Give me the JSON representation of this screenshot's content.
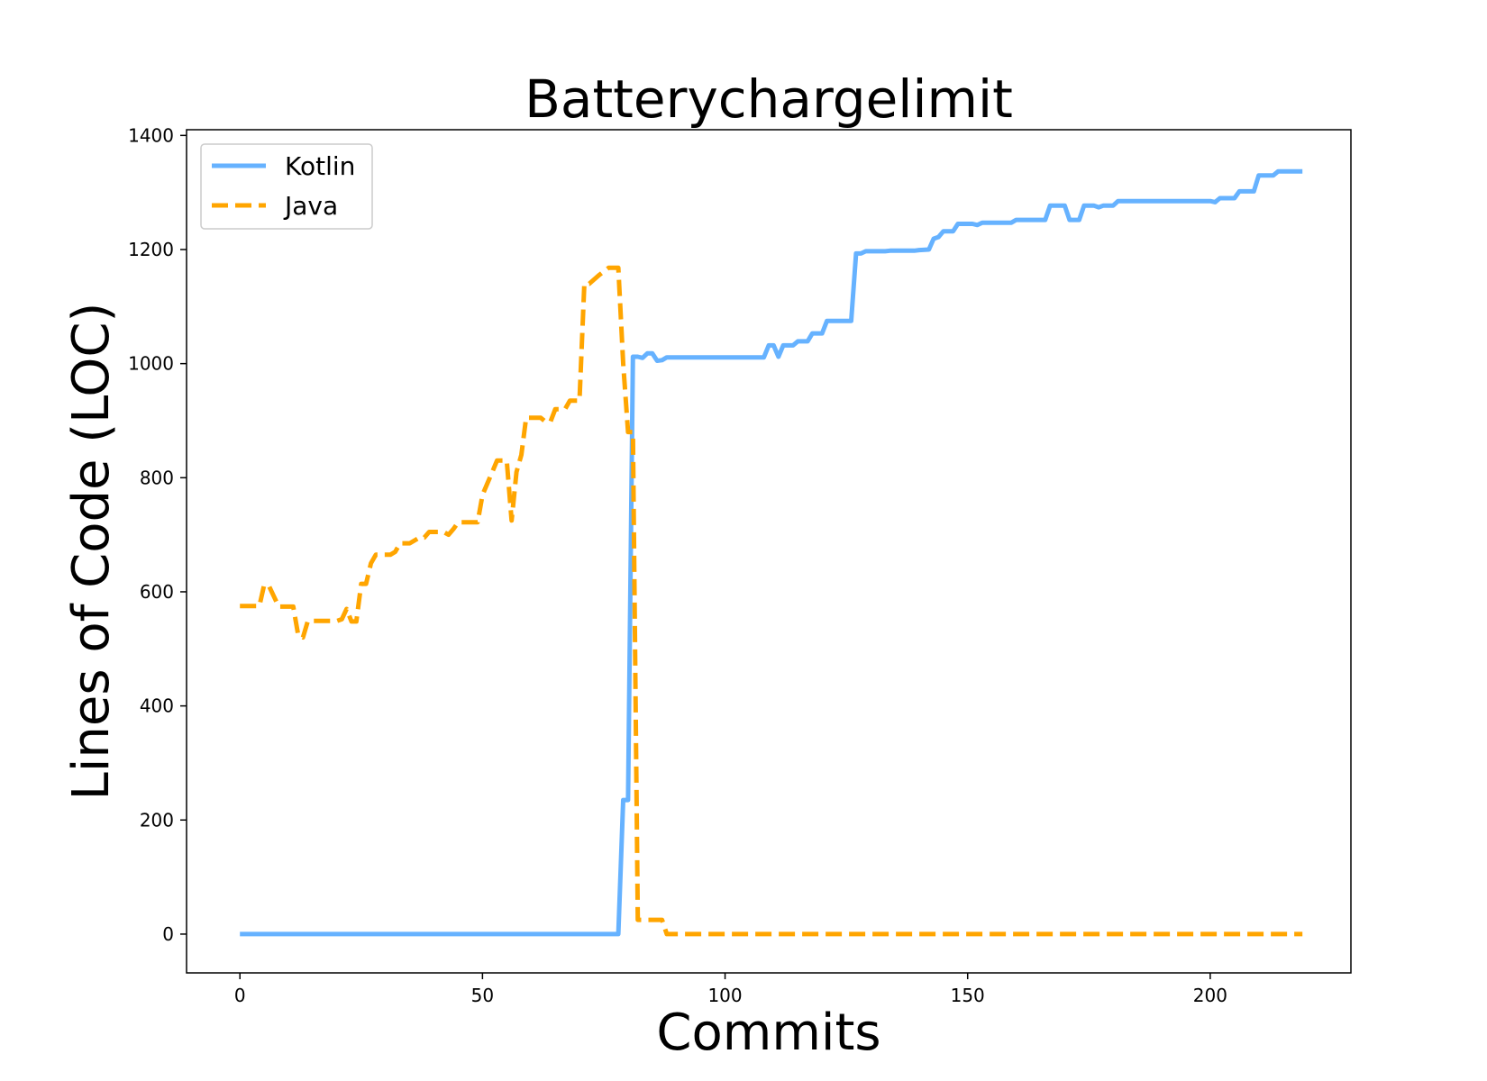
{
  "chart_data": {
    "type": "line",
    "title": "Batterychargelimit",
    "xlabel": "Commits",
    "ylabel": "Lines of Code (LOC)",
    "xlim": [
      -11,
      229
    ],
    "ylim": [
      -68,
      1410
    ],
    "xticks": [
      0,
      50,
      100,
      150,
      200
    ],
    "yticks": [
      0,
      200,
      400,
      600,
      800,
      1000,
      1200,
      1400
    ],
    "grid": false,
    "legend_position": "top-left",
    "series": [
      {
        "name": "Kotlin",
        "color": "#66b2ff",
        "dash": "solid",
        "points": [
          [
            0,
            0
          ],
          [
            78,
            0
          ],
          [
            79,
            235
          ],
          [
            80,
            235
          ],
          [
            81,
            1012
          ],
          [
            82,
            1012
          ],
          [
            83,
            1010
          ],
          [
            84,
            1018
          ],
          [
            85,
            1018
          ],
          [
            86,
            1005
          ],
          [
            87,
            1006
          ],
          [
            88,
            1011
          ],
          [
            108,
            1011
          ],
          [
            109,
            1032
          ],
          [
            110,
            1032
          ],
          [
            111,
            1012
          ],
          [
            112,
            1032
          ],
          [
            114,
            1032
          ],
          [
            115,
            1039
          ],
          [
            117,
            1039
          ],
          [
            118,
            1053
          ],
          [
            120,
            1053
          ],
          [
            121,
            1075
          ],
          [
            126,
            1075
          ],
          [
            127,
            1193
          ],
          [
            128,
            1193
          ],
          [
            129,
            1197
          ],
          [
            133,
            1197
          ],
          [
            134,
            1198
          ],
          [
            139,
            1198
          ],
          [
            140,
            1199
          ],
          [
            142,
            1200
          ],
          [
            143,
            1219
          ],
          [
            144,
            1222
          ],
          [
            145,
            1232
          ],
          [
            147,
            1232
          ],
          [
            148,
            1245
          ],
          [
            151,
            1245
          ],
          [
            152,
            1243
          ],
          [
            153,
            1247
          ],
          [
            159,
            1247
          ],
          [
            160,
            1252
          ],
          [
            166,
            1252
          ],
          [
            167,
            1277
          ],
          [
            170,
            1277
          ],
          [
            171,
            1252
          ],
          [
            173,
            1252
          ],
          [
            174,
            1277
          ],
          [
            176,
            1277
          ],
          [
            177,
            1274
          ],
          [
            178,
            1277
          ],
          [
            180,
            1277
          ],
          [
            181,
            1285
          ],
          [
            200,
            1285
          ],
          [
            201,
            1283
          ],
          [
            202,
            1290
          ],
          [
            205,
            1290
          ],
          [
            206,
            1302
          ],
          [
            209,
            1302
          ],
          [
            210,
            1330
          ],
          [
            213,
            1330
          ],
          [
            214,
            1337
          ],
          [
            219,
            1337
          ]
        ]
      },
      {
        "name": "Java",
        "color": "#ffa500",
        "dash": "dashed",
        "points": [
          [
            0,
            575
          ],
          [
            4,
            575
          ],
          [
            5,
            612
          ],
          [
            6,
            610
          ],
          [
            8,
            574
          ],
          [
            11,
            574
          ],
          [
            12,
            525
          ],
          [
            13,
            520
          ],
          [
            14,
            549
          ],
          [
            15,
            549
          ],
          [
            16,
            549
          ],
          [
            20,
            549
          ],
          [
            21,
            552
          ],
          [
            22,
            570
          ],
          [
            23,
            548
          ],
          [
            24,
            548
          ],
          [
            25,
            614
          ],
          [
            26,
            614
          ],
          [
            27,
            650
          ],
          [
            28,
            665
          ],
          [
            31,
            665
          ],
          [
            32,
            670
          ],
          [
            33,
            685
          ],
          [
            35,
            685
          ],
          [
            37,
            695
          ],
          [
            38,
            695
          ],
          [
            39,
            705
          ],
          [
            42,
            705
          ],
          [
            43,
            700
          ],
          [
            44,
            710
          ],
          [
            45,
            722
          ],
          [
            49,
            722
          ],
          [
            50,
            770
          ],
          [
            51,
            790
          ],
          [
            52,
            810
          ],
          [
            53,
            830
          ],
          [
            55,
            830
          ],
          [
            56,
            725
          ],
          [
            57,
            810
          ],
          [
            58,
            840
          ],
          [
            59,
            905
          ],
          [
            62,
            905
          ],
          [
            63,
            898
          ],
          [
            64,
            898
          ],
          [
            65,
            920
          ],
          [
            67,
            920
          ],
          [
            68,
            935
          ],
          [
            70,
            935
          ],
          [
            71,
            1140
          ],
          [
            72,
            1140
          ],
          [
            74,
            1155
          ],
          [
            76,
            1168
          ],
          [
            78,
            1168
          ],
          [
            79,
            1000
          ],
          [
            80,
            880
          ],
          [
            81,
            880
          ],
          [
            82,
            25
          ],
          [
            87,
            25
          ],
          [
            88,
            0
          ],
          [
            219,
            0
          ]
        ]
      }
    ]
  }
}
